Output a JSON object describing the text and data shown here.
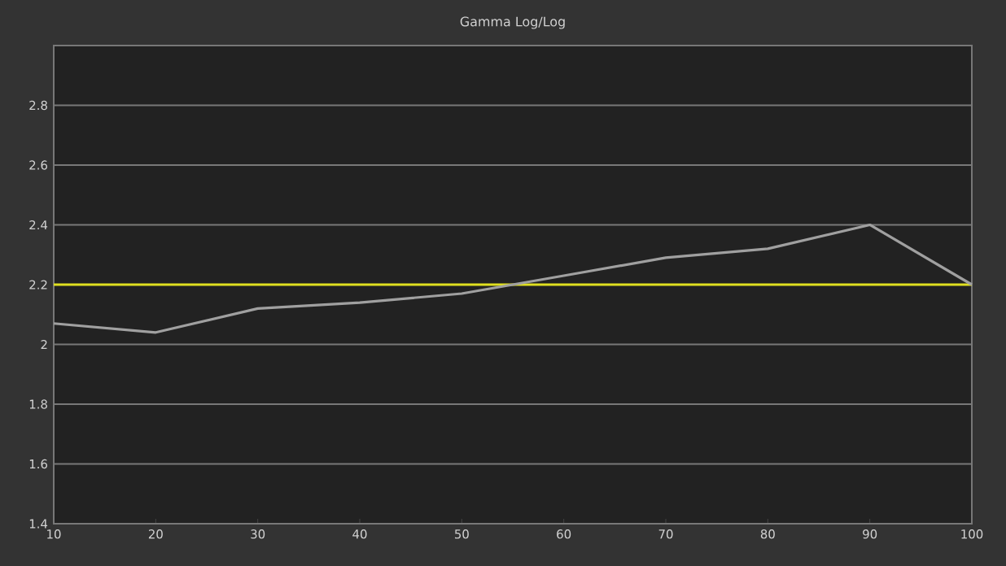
{
  "chart_data": {
    "type": "line",
    "title": "Gamma Log/Log",
    "x": [
      10,
      20,
      30,
      40,
      50,
      60,
      70,
      80,
      90,
      100
    ],
    "series": [
      {
        "color": "#a0a0a0",
        "values": [
          2.07,
          2.04,
          2.12,
          2.14,
          2.17,
          2.23,
          2.29,
          2.32,
          2.4,
          2.2
        ]
      }
    ],
    "xlim": [
      10,
      100
    ],
    "xticks": [
      10,
      20,
      30,
      40,
      50,
      60,
      70,
      80,
      90,
      100
    ],
    "ylim": [
      1.4,
      3.0
    ],
    "yticks": [
      1.4,
      1.6,
      1.8,
      2,
      2.2,
      2.4,
      2.6,
      2.8
    ],
    "grid": "y",
    "marker": "none",
    "line_style": "solid",
    "ref_lines": [
      {
        "axis": "y",
        "value": 2.2,
        "color": "#e0e020"
      }
    ]
  }
}
